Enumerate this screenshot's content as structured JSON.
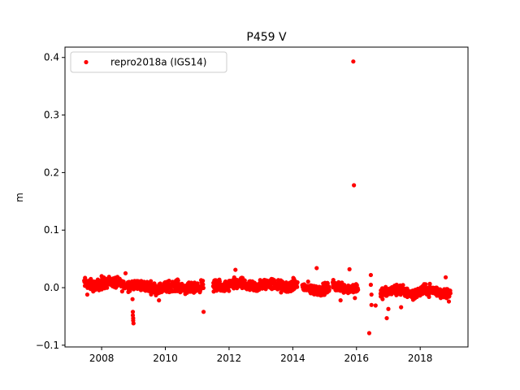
{
  "chart_data": {
    "type": "scatter",
    "title": "P459 V",
    "xlabel": "",
    "ylabel": "m",
    "xlim": [
      2006.85,
      2019.5
    ],
    "ylim": [
      -0.103,
      0.418
    ],
    "xticks": [
      2008,
      2010,
      2012,
      2014,
      2016,
      2018
    ],
    "xtick_labels": [
      "2008",
      "2010",
      "2012",
      "2014",
      "2016",
      "2018"
    ],
    "yticks": [
      -0.1,
      0.0,
      0.1,
      0.2,
      0.3,
      0.4
    ],
    "ytick_labels": [
      "−0.1",
      "0.0",
      "0.1",
      "0.2",
      "0.3",
      "0.4"
    ],
    "legend_position": "top-left",
    "grid": false,
    "color": "#ff0000",
    "series": [
      {
        "name": "repro2018a (IGS14)",
        "color": "#ff0000",
        "segments": [
          {
            "x_start": 2007.45,
            "x_end": 2009.05,
            "y_center": 0.007,
            "y_spread": 0.017
          },
          {
            "x_start": 2009.1,
            "x_end": 2011.2,
            "y_center": 0.001,
            "y_spread": 0.017
          },
          {
            "x_start": 2011.5,
            "x_end": 2014.15,
            "y_center": 0.004,
            "y_spread": 0.018
          },
          {
            "x_start": 2014.3,
            "x_end": 2015.15,
            "y_center": -0.002,
            "y_spread": 0.017
          },
          {
            "x_start": 2015.25,
            "x_end": 2016.05,
            "y_center": 0.001,
            "y_spread": 0.016
          },
          {
            "x_start": 2016.75,
            "x_end": 2018.95,
            "y_center": -0.007,
            "y_spread": 0.017
          }
        ],
        "outliers": [
          {
            "x": 2007.55,
            "y": -0.012
          },
          {
            "x": 2008.0,
            "y": 0.02
          },
          {
            "x": 2008.75,
            "y": 0.025
          },
          {
            "x": 2008.98,
            "y": -0.042
          },
          {
            "x": 2008.98,
            "y": -0.048
          },
          {
            "x": 2008.99,
            "y": -0.053
          },
          {
            "x": 2008.99,
            "y": -0.057
          },
          {
            "x": 2009.0,
            "y": -0.062
          },
          {
            "x": 2008.97,
            "y": -0.02
          },
          {
            "x": 2009.8,
            "y": -0.022
          },
          {
            "x": 2011.2,
            "y": -0.042
          },
          {
            "x": 2012.2,
            "y": 0.031
          },
          {
            "x": 2014.75,
            "y": 0.034
          },
          {
            "x": 2015.5,
            "y": -0.022
          },
          {
            "x": 2015.78,
            "y": 0.032
          },
          {
            "x": 2015.9,
            "y": 0.393
          },
          {
            "x": 2015.92,
            "y": 0.178
          },
          {
            "x": 2015.95,
            "y": -0.018
          },
          {
            "x": 2016.4,
            "y": -0.079
          },
          {
            "x": 2016.45,
            "y": 0.022
          },
          {
            "x": 2016.45,
            "y": 0.005
          },
          {
            "x": 2016.47,
            "y": -0.012
          },
          {
            "x": 2016.47,
            "y": -0.03
          },
          {
            "x": 2016.6,
            "y": -0.031
          },
          {
            "x": 2016.95,
            "y": -0.053
          },
          {
            "x": 2017.0,
            "y": -0.037
          },
          {
            "x": 2017.4,
            "y": -0.034
          },
          {
            "x": 2018.8,
            "y": 0.018
          },
          {
            "x": 2018.9,
            "y": -0.024
          }
        ]
      }
    ]
  }
}
